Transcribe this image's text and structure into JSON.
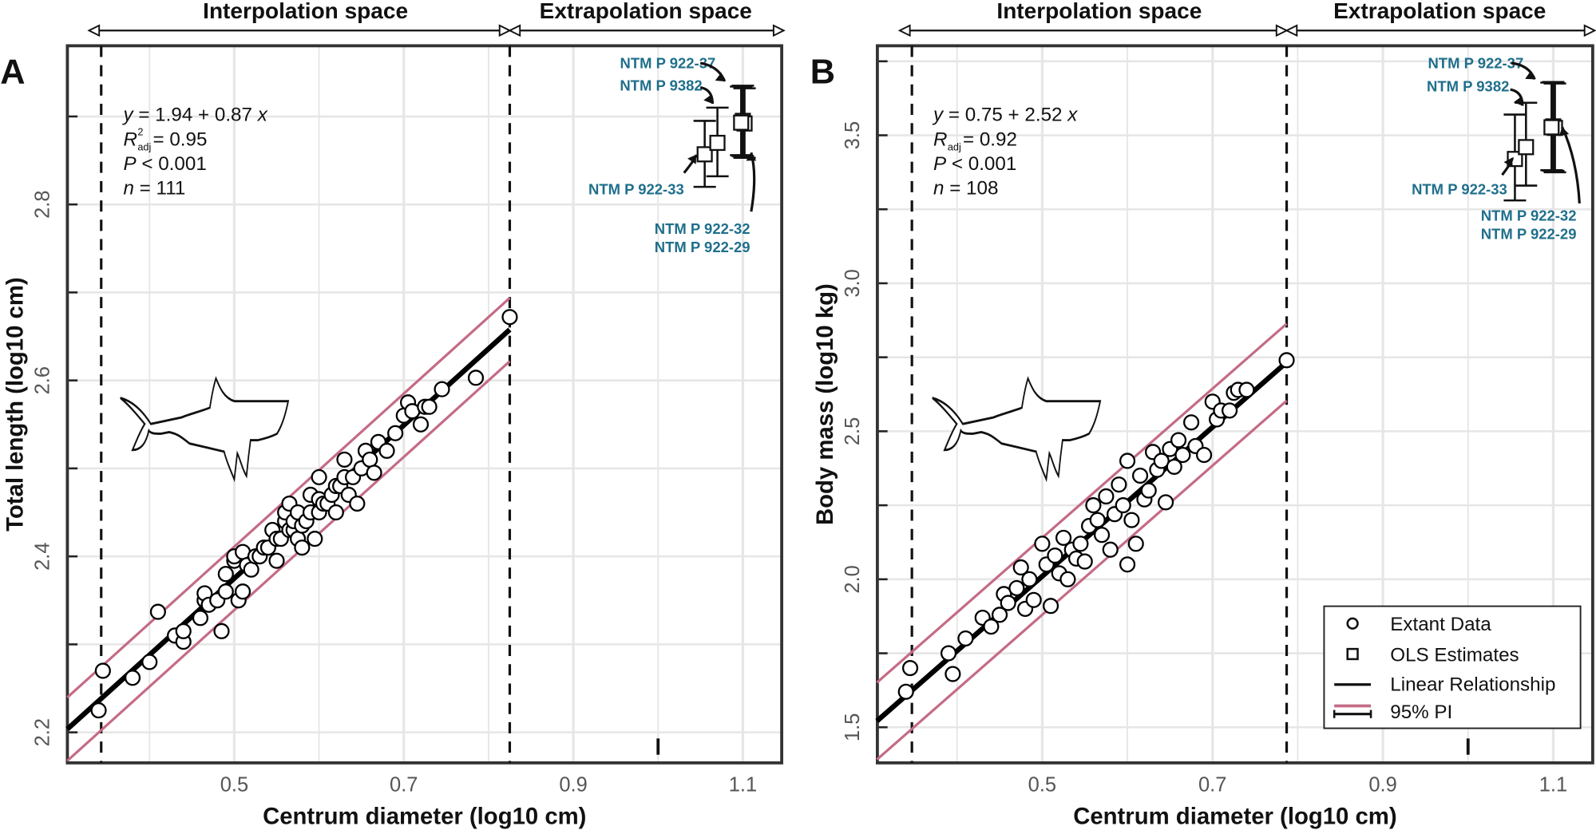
{
  "chart_data": [
    {
      "type": "scatter",
      "panel_label": "A",
      "xlabel": "Centrum diameter (log10 cm)",
      "ylabel": "Total length (log10 cm)",
      "xlim": [
        0.303,
        1.146
      ],
      "ylim": [
        2.165,
        2.98
      ],
      "xticks": [
        0.5,
        0.7,
        0.9,
        1.1
      ],
      "xtick_labels": [
        "0.5",
        "0.7",
        "0.9",
        "1.1"
      ],
      "yticks": [
        2.2,
        2.4,
        2.6,
        2.8
      ],
      "ytick_labels": [
        "2.2",
        "2.4",
        "2.6",
        "2.8"
      ],
      "grid": true,
      "regions": {
        "interpolation_label": "Interpolation space",
        "extrapolation_label": "Extrapolation space",
        "boundaries": [
          0.343,
          0.825
        ]
      },
      "regression": {
        "intercept": 1.94,
        "slope": 0.87,
        "pi_halfwidth": 0.036
      },
      "stats": {
        "eq_y": "y",
        "eq_rhs": " = 1.94 + 0.87 ",
        "eq_x": "x",
        "r": "R",
        "r_sup": "2",
        "r_sub": "adj",
        "r_val": " = 0.95",
        "p": "P",
        "p_val": " < 0.001",
        "n": "n",
        "n_val": " = 111"
      },
      "extant": {
        "x": [
          0.34,
          0.345,
          0.38,
          0.4,
          0.41,
          0.43,
          0.44,
          0.44,
          0.46,
          0.465,
          0.465,
          0.47,
          0.48,
          0.485,
          0.49,
          0.49,
          0.5,
          0.5,
          0.505,
          0.51,
          0.51,
          0.515,
          0.52,
          0.525,
          0.53,
          0.535,
          0.54,
          0.545,
          0.55,
          0.55,
          0.555,
          0.56,
          0.56,
          0.565,
          0.565,
          0.57,
          0.57,
          0.575,
          0.575,
          0.58,
          0.58,
          0.585,
          0.59,
          0.59,
          0.595,
          0.6,
          0.6,
          0.6,
          0.605,
          0.61,
          0.615,
          0.62,
          0.62,
          0.625,
          0.63,
          0.63,
          0.635,
          0.64,
          0.645,
          0.65,
          0.655,
          0.66,
          0.665,
          0.67,
          0.68,
          0.69,
          0.7,
          0.705,
          0.71,
          0.72,
          0.725,
          0.73,
          0.745,
          0.785,
          0.825
        ],
        "y": [
          2.225,
          2.27,
          2.262,
          2.28,
          2.337,
          2.31,
          2.303,
          2.315,
          2.33,
          2.35,
          2.358,
          2.345,
          2.35,
          2.315,
          2.36,
          2.38,
          2.395,
          2.4,
          2.35,
          2.36,
          2.405,
          2.39,
          2.385,
          2.4,
          2.4,
          2.41,
          2.41,
          2.43,
          2.395,
          2.42,
          2.42,
          2.44,
          2.45,
          2.46,
          2.43,
          2.43,
          2.44,
          2.45,
          2.42,
          2.41,
          2.435,
          2.44,
          2.47,
          2.45,
          2.42,
          2.45,
          2.49,
          2.465,
          2.46,
          2.46,
          2.47,
          2.45,
          2.48,
          2.48,
          2.51,
          2.49,
          2.47,
          2.49,
          2.46,
          2.5,
          2.52,
          2.51,
          2.495,
          2.53,
          2.52,
          2.54,
          2.56,
          2.575,
          2.565,
          2.55,
          2.57,
          2.57,
          2.59,
          2.603,
          2.672
        ]
      },
      "estimates": [
        {
          "label": "NTM P 922-37",
          "x": 1.055,
          "y": 2.857,
          "lo": 2.82,
          "hi": 2.895
        },
        {
          "label": "NTM P 9382",
          "x": 1.07,
          "y": 2.87,
          "lo": 2.832,
          "hi": 2.91
        },
        {
          "label": "NTM P 922-33",
          "x": 1.1,
          "y": 2.895,
          "lo": 2.855,
          "hi": 2.935
        },
        {
          "label": "NTM P 922-32",
          "x": 1.102,
          "y": 2.892,
          "lo": 2.853,
          "hi": 2.932
        },
        {
          "label": "NTM P 922-29",
          "x": 1.098,
          "y": 2.893,
          "lo": 2.856,
          "hi": 2.934
        }
      ]
    },
    {
      "type": "scatter",
      "panel_label": "B",
      "xlabel": "Centrum diameter (log10 cm)",
      "ylabel": "Body mass (log10 kg)",
      "xlim": [
        0.306,
        1.146
      ],
      "ylim": [
        1.38,
        3.8
      ],
      "xticks": [
        0.5,
        0.7,
        0.9,
        1.1
      ],
      "xtick_labels": [
        "0.5",
        "0.7",
        "0.9",
        "1.1"
      ],
      "yticks": [
        1.5,
        2.0,
        2.5,
        3.0,
        3.5
      ],
      "ytick_labels": [
        "1.5",
        "2.0",
        "2.5",
        "3.0",
        "3.5"
      ],
      "grid": true,
      "regions": {
        "interpolation_label": "Interpolation space",
        "extrapolation_label": "Extrapolation space",
        "boundaries": [
          0.347,
          0.787
        ]
      },
      "regression": {
        "intercept": 0.75,
        "slope": 2.52,
        "pi_halfwidth": 0.13
      },
      "stats": {
        "eq_y": "y",
        "eq_rhs": " = 0.75 + 2.52 ",
        "eq_x": "x",
        "r": "R",
        "r_sup": "",
        "r_sub": "adj",
        "r_val": " = 0.92",
        "p": "P",
        "p_val": " < 0.001",
        "n": "n",
        "n_val": " = 108"
      },
      "extant": {
        "x": [
          0.34,
          0.345,
          0.39,
          0.395,
          0.41,
          0.43,
          0.44,
          0.45,
          0.455,
          0.46,
          0.47,
          0.475,
          0.48,
          0.485,
          0.49,
          0.5,
          0.505,
          0.51,
          0.515,
          0.52,
          0.525,
          0.53,
          0.535,
          0.54,
          0.545,
          0.55,
          0.555,
          0.56,
          0.565,
          0.57,
          0.575,
          0.58,
          0.585,
          0.59,
          0.595,
          0.6,
          0.6,
          0.605,
          0.61,
          0.615,
          0.62,
          0.625,
          0.63,
          0.635,
          0.64,
          0.645,
          0.65,
          0.655,
          0.66,
          0.665,
          0.675,
          0.68,
          0.69,
          0.7,
          0.705,
          0.71,
          0.72,
          0.725,
          0.73,
          0.74,
          0.787
        ],
        "y": [
          1.62,
          1.7,
          1.75,
          1.68,
          1.8,
          1.87,
          1.84,
          1.88,
          1.95,
          1.92,
          1.97,
          2.04,
          1.9,
          2.0,
          1.93,
          2.12,
          2.05,
          1.91,
          2.08,
          2.02,
          2.14,
          2.0,
          2.1,
          2.07,
          2.12,
          2.06,
          2.18,
          2.25,
          2.2,
          2.15,
          2.28,
          2.1,
          2.22,
          2.32,
          2.25,
          2.05,
          2.4,
          2.2,
          2.12,
          2.35,
          2.27,
          2.3,
          2.43,
          2.37,
          2.4,
          2.26,
          2.44,
          2.38,
          2.47,
          2.42,
          2.53,
          2.45,
          2.42,
          2.6,
          2.54,
          2.57,
          2.57,
          2.63,
          2.64,
          2.64,
          2.74
        ]
      },
      "estimates": [
        {
          "label": "NTM P 922-37",
          "x": 1.055,
          "y": 3.42,
          "lo": 3.28,
          "hi": 3.57
        },
        {
          "label": "NTM P 9382",
          "x": 1.068,
          "y": 3.46,
          "lo": 3.33,
          "hi": 3.61
        },
        {
          "label": "NTM P 922-33",
          "x": 1.1,
          "y": 3.53,
          "lo": 3.38,
          "hi": 3.68
        },
        {
          "label": "NTM P 922-32",
          "x": 1.102,
          "y": 3.525,
          "lo": 3.375,
          "hi": 3.675
        },
        {
          "label": "NTM P 922-29",
          "x": 1.098,
          "y": 3.527,
          "lo": 3.382,
          "hi": 3.678
        }
      ],
      "legend": {
        "placement": "bottom-right",
        "items": [
          "Extant Data",
          "OLS Estimates",
          "Linear Relationship",
          "95% PI"
        ]
      }
    }
  ],
  "colors": {
    "pi_line": "#c46b85",
    "annotation": "#1f6f8b",
    "grid": "#e6e6e6",
    "regression": "#000000"
  }
}
